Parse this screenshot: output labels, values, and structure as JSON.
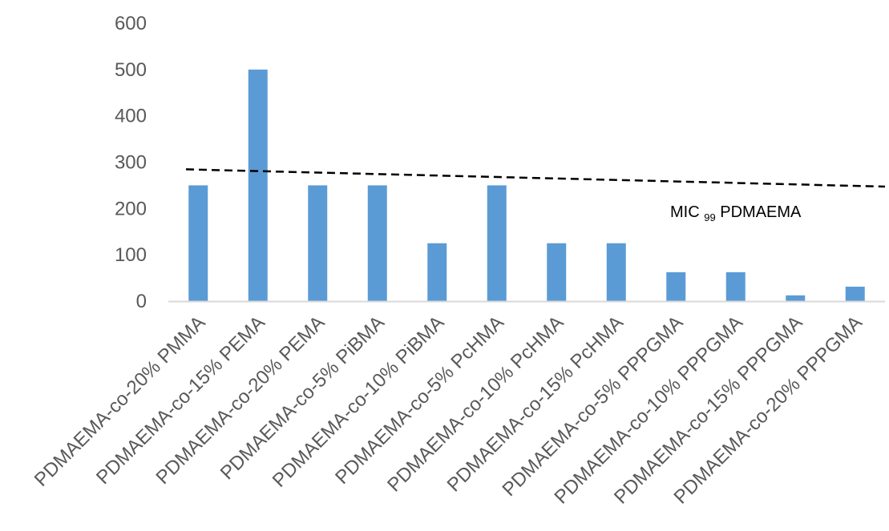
{
  "chart_data": {
    "type": "bar",
    "categories": [
      "PDMAEMA-co-20% PMMA",
      "PDMAEMA-co-15% PEMA",
      "PDMAEMA-co-20% PEMA",
      "PDMAEMA-co-5% PiBMA",
      "PDMAEMA-co-10% PiBMA",
      "PDMAEMA-co-5% PcHMA",
      "PDMAEMA-co-10% PcHMA",
      "PDMAEMA-co-15% PcHMA",
      "PDMAEMA-co-5% PPPGMA",
      "PDMAEMA-co-10% PPPGMA",
      "PDMAEMA-co-15% PPPGMA",
      "PDMAEMA-co-20% PPPGMA"
    ],
    "values": [
      250,
      500,
      250,
      250,
      125,
      250,
      125,
      125,
      62.5,
      62.5,
      12.5,
      31.25
    ],
    "yticks": [
      "0",
      "100",
      "200",
      "300",
      "400",
      "500",
      "600"
    ],
    "ylim": [
      0,
      600
    ],
    "title": "",
    "xlabel": "",
    "ylabel": "",
    "reference_line": {
      "value": 250,
      "style": "dashed",
      "label_main": "MIC",
      "label_sub": "99",
      "label_rest": " PDMAEMA"
    },
    "grid": false,
    "bar_color": "#5b9bd5",
    "axis_color": "#d9d9d9"
  }
}
